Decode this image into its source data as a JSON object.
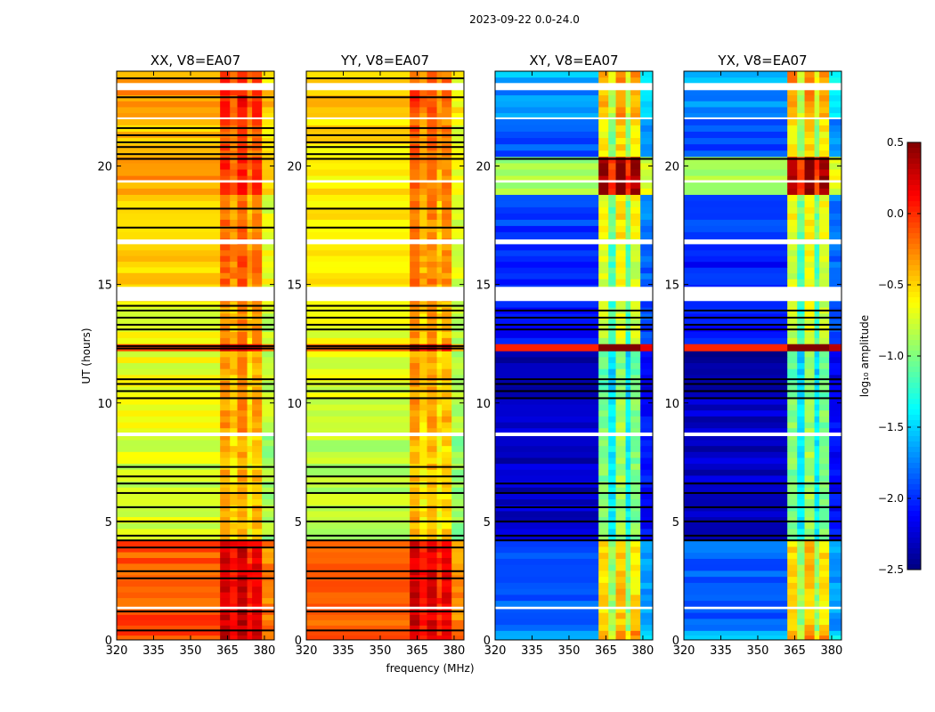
{
  "chart_data": {
    "type": "heatmap",
    "title": "2023-09-22 0.0-24.0",
    "xlabel": "frequency (MHz)",
    "ylabel": "UT (hours)",
    "xlim": [
      320,
      384
    ],
    "ylim": [
      0,
      24
    ],
    "xticks": [
      320,
      335,
      350,
      365,
      380
    ],
    "yticks": [
      0,
      5,
      10,
      15,
      20
    ],
    "colormap": "jet",
    "colorbar": {
      "label": "log₁₀ amplitude",
      "range": [
        -2.5,
        0.5
      ],
      "ticks": [
        "0.5",
        "0.0",
        "−0.5",
        "−1.0",
        "−1.5",
        "−2.0",
        "−2.5"
      ],
      "tick_values": [
        0.5,
        0.0,
        -0.5,
        -1.0,
        -1.5,
        -2.0,
        -2.5
      ]
    },
    "freq_bands": [
      [
        320,
        362
      ],
      [
        362,
        366
      ],
      [
        366,
        369
      ],
      [
        369,
        373
      ],
      [
        373,
        375
      ],
      [
        375,
        379
      ],
      [
        379,
        384
      ]
    ],
    "panels": [
      {
        "title": "XX, V8=EA07",
        "band_offsets": [
          0,
          0.35,
          0.2,
          0.4,
          0.12,
          0.3,
          -0.15
        ],
        "time_rows": [
          [
            0,
            0.4,
            -0.05
          ],
          [
            0.4,
            1.3,
            -0.08
          ],
          [
            1.3,
            4.2,
            -0.12
          ],
          [
            4.2,
            8.7,
            -0.75
          ],
          [
            8.7,
            12.2,
            -0.68
          ],
          [
            12.2,
            12.5,
            -0.1
          ],
          [
            12.5,
            14.3,
            -0.65
          ],
          [
            14.3,
            16.7,
            -0.5
          ],
          [
            16.7,
            18.8,
            -0.55
          ],
          [
            18.8,
            20.4,
            -0.35
          ],
          [
            20.4,
            22,
            -0.45
          ],
          [
            22,
            23.5,
            -0.3
          ],
          [
            23.5,
            24,
            -0.4
          ]
        ],
        "white_gaps": [
          [
            1.3,
            1.4
          ],
          [
            14.3,
            14.9
          ],
          [
            16.7,
            16.9
          ],
          [
            19.3,
            19.4
          ],
          [
            23.2,
            23.5
          ],
          [
            8.6,
            8.75
          ],
          [
            22.0,
            22.05
          ]
        ],
        "black_lines": [
          0.4,
          1.2,
          2.6,
          2.9,
          3.9,
          4.2,
          4.4,
          5.0,
          5.6,
          6.2,
          6.6,
          6.9,
          7.3,
          10.2,
          10.5,
          10.8,
          11.0,
          12.3,
          12.4,
          13.1,
          13.3,
          13.6,
          13.9,
          14.1,
          17.4,
          18.2,
          20.3,
          20.5,
          20.8,
          21.0,
          21.3,
          21.6,
          22.9,
          23.7
        ]
      },
      {
        "title": "YY, V8=EA07",
        "band_offsets": [
          0,
          0.4,
          0.2,
          0.35,
          0.15,
          0.3,
          -0.15
        ],
        "time_rows": [
          [
            0,
            0.4,
            -0.1
          ],
          [
            0.4,
            1.3,
            -0.12
          ],
          [
            1.3,
            4.2,
            -0.15
          ],
          [
            4.2,
            8.7,
            -0.8
          ],
          [
            8.7,
            12.2,
            -0.72
          ],
          [
            12.2,
            12.5,
            -0.15
          ],
          [
            12.5,
            14.3,
            -0.7
          ],
          [
            14.3,
            16.7,
            -0.6
          ],
          [
            16.7,
            18.8,
            -0.62
          ],
          [
            18.8,
            20.4,
            -0.55
          ],
          [
            20.4,
            22,
            -0.55
          ],
          [
            22,
            23.5,
            -0.45
          ],
          [
            23.5,
            24,
            -0.5
          ]
        ],
        "white_gaps": [
          [
            1.3,
            1.4
          ],
          [
            14.3,
            14.9
          ],
          [
            16.7,
            16.9
          ],
          [
            19.3,
            19.4
          ],
          [
            23.2,
            23.5
          ],
          [
            8.6,
            8.75
          ],
          [
            22.0,
            22.05
          ]
        ],
        "black_lines": [
          0.4,
          1.2,
          2.6,
          2.9,
          3.9,
          4.2,
          4.4,
          5.0,
          5.6,
          6.2,
          6.6,
          6.9,
          7.3,
          10.2,
          10.5,
          10.8,
          11.0,
          12.3,
          12.4,
          13.1,
          13.3,
          13.6,
          13.9,
          14.1,
          17.4,
          18.2,
          20.3,
          20.5,
          20.8,
          21.0,
          21.3,
          21.6,
          22.9,
          23.7
        ]
      },
      {
        "title": "XY, V8=EA07",
        "band_offsets": [
          0,
          1.3,
          0.9,
          1.4,
          0.9,
          1.3,
          0.2
        ],
        "time_rows": [
          [
            0,
            0.4,
            -1.6
          ],
          [
            0.4,
            4.2,
            -1.85
          ],
          [
            4.2,
            10.2,
            -2.3
          ],
          [
            10.2,
            12.2,
            -2.4
          ],
          [
            12.2,
            12.5,
            0.1
          ],
          [
            12.5,
            14.3,
            -2.1
          ],
          [
            14.3,
            15.0,
            -2.0
          ],
          [
            15.0,
            16.7,
            -2.05
          ],
          [
            16.7,
            18.8,
            -1.95
          ],
          [
            18.8,
            20.4,
            -0.9
          ],
          [
            20.4,
            22,
            -1.9
          ],
          [
            22,
            23.5,
            -1.7
          ],
          [
            23.5,
            24,
            -1.6
          ]
        ],
        "white_gaps": [
          [
            1.3,
            1.4
          ],
          [
            14.3,
            14.9
          ],
          [
            16.7,
            16.9
          ],
          [
            19.3,
            19.4
          ],
          [
            23.2,
            23.5
          ],
          [
            8.6,
            8.75
          ],
          [
            22.0,
            22.05
          ]
        ],
        "black_lines": [
          4.2,
          4.4,
          5.0,
          5.6,
          6.2,
          6.6,
          10.2,
          10.5,
          10.8,
          11.0,
          13.1,
          13.3,
          13.6,
          13.9,
          20.3
        ]
      },
      {
        "title": "YX, V8=EA07",
        "band_offsets": [
          0,
          1.3,
          0.9,
          1.4,
          0.9,
          1.3,
          0.2
        ],
        "time_rows": [
          [
            0,
            0.4,
            -1.6
          ],
          [
            0.4,
            4.2,
            -1.85
          ],
          [
            4.2,
            10.2,
            -2.3
          ],
          [
            10.2,
            12.2,
            -2.4
          ],
          [
            12.2,
            12.5,
            0.1
          ],
          [
            12.5,
            14.3,
            -2.1
          ],
          [
            14.3,
            15.0,
            -2.0
          ],
          [
            15.0,
            16.7,
            -2.05
          ],
          [
            16.7,
            18.8,
            -1.95
          ],
          [
            18.8,
            20.4,
            -0.9
          ],
          [
            20.4,
            22,
            -1.9
          ],
          [
            22,
            23.5,
            -1.7
          ],
          [
            23.5,
            24,
            -1.6
          ]
        ],
        "white_gaps": [
          [
            1.3,
            1.4
          ],
          [
            14.3,
            14.9
          ],
          [
            16.7,
            16.9
          ],
          [
            19.3,
            19.4
          ],
          [
            23.2,
            23.5
          ],
          [
            8.6,
            8.75
          ],
          [
            22.0,
            22.05
          ]
        ],
        "black_lines": [
          4.2,
          4.4,
          5.0,
          5.6,
          6.2,
          6.6,
          10.2,
          10.5,
          10.8,
          11.0,
          13.1,
          13.3,
          13.6,
          13.9,
          20.3
        ]
      }
    ]
  }
}
